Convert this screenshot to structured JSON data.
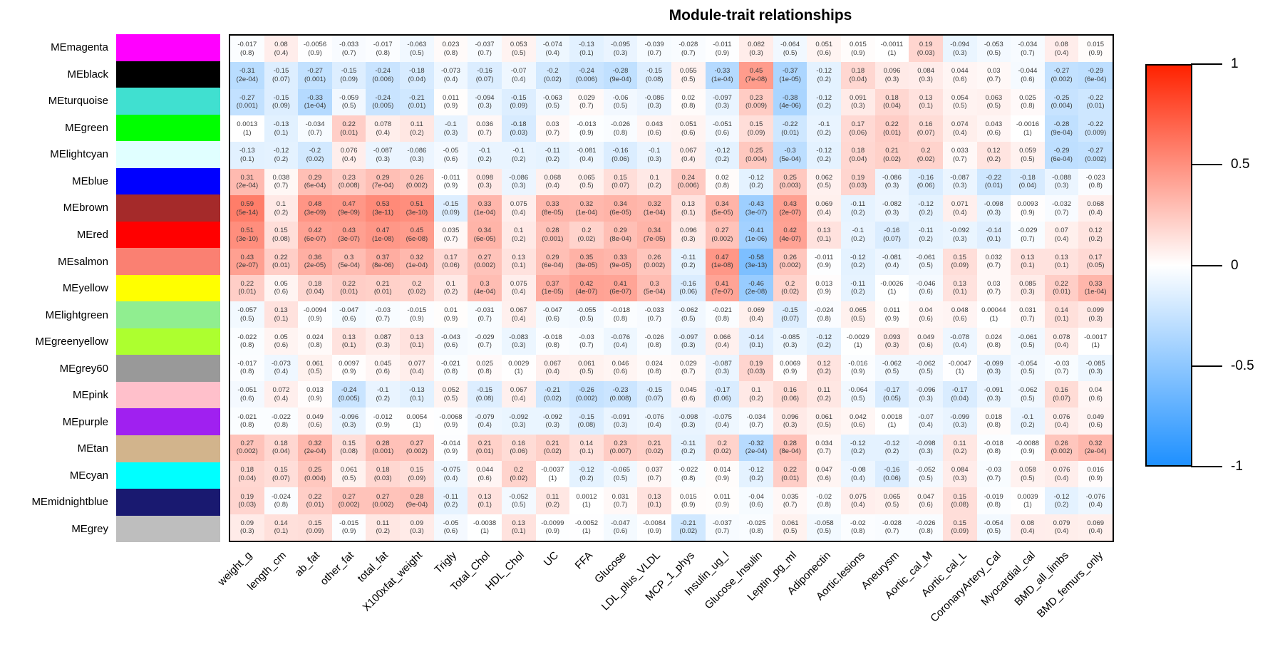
{
  "colors": {
    "heat_positive": "#FF2200",
    "heat_negative": "#1E90FF",
    "heat_zero": "#FFFFFF",
    "frame": "#000000"
  },
  "legend": {
    "ticks": [
      "1",
      "0.5",
      "0",
      "-0.5",
      "-1"
    ]
  },
  "chart_data": {
    "type": "heatmap",
    "title": "Module-trait relationships",
    "value_range": [
      -1,
      1
    ],
    "legend_ticks": [
      1,
      0.5,
      0,
      -0.5,
      -1
    ],
    "cell_text_format": "correlation over (p-value)",
    "rows": [
      "MEmagenta",
      "MEblack",
      "MEturquoise",
      "MEgreen",
      "MElightcyan",
      "MEblue",
      "MEbrown",
      "MEred",
      "MEsalmon",
      "MEyellow",
      "MElightgreen",
      "MEgreenyellow",
      "MEgrey60",
      "MEpink",
      "MEpurple",
      "MEtan",
      "MEcyan",
      "MEmidnightblue",
      "MEgrey"
    ],
    "row_colors": [
      "#FF00FF",
      "#000000",
      "#40E0D0",
      "#00FF00",
      "#E0FFFF",
      "#0000FF",
      "#A52A2A",
      "#FF0000",
      "#FA8072",
      "#FFFF00",
      "#90EE90",
      "#ADFF2F",
      "#999999",
      "#FFC0CB",
      "#A020F0",
      "#D2B48C",
      "#00FFFF",
      "#191970",
      "#BEBEBE"
    ],
    "columns": [
      "weight_g",
      "length_cm",
      "ab_fat",
      "other_fat",
      "total_fat",
      "X100xfat_weight",
      "Trigly",
      "Total_Chol",
      "HDL_Chol",
      "UC",
      "FFA",
      "Glucose",
      "LDL_plus_VLDL",
      "MCP_1_phys",
      "Insulin_ug_l",
      "Glucose_Insulin",
      "Leptin_pg_ml",
      "Adiponectin",
      "Aortic.lesions",
      "Aneurysm",
      "Aortic_cal_M",
      "Aortic_cal_L",
      "CoronaryArtery_Cal",
      "Myocardial_cal",
      "BMD_all_limbs",
      "BMD_femurs_only"
    ],
    "cor": [
      [
        -0.017,
        0.08,
        -0.0056,
        -0.033,
        -0.017,
        -0.063,
        0.023,
        -0.037,
        0.053,
        -0.074,
        -0.13,
        -0.095,
        -0.039,
        -0.028,
        -0.011,
        0.082,
        -0.064,
        0.051,
        0.015,
        -0.0011,
        0.19,
        -0.094,
        -0.053,
        -0.034,
        0.08,
        0.015
      ],
      [
        -0.31,
        -0.15,
        -0.27,
        -0.15,
        -0.24,
        -0.18,
        -0.073,
        -0.16,
        -0.07,
        -0.2,
        -0.24,
        -0.28,
        -0.15,
        0.055,
        -0.33,
        0.45,
        -0.37,
        -0.12,
        0.18,
        0.096,
        0.084,
        0.044,
        0.03,
        -0.044,
        -0.27,
        -0.29
      ],
      [
        -0.27,
        -0.15,
        -0.33,
        -0.059,
        -0.24,
        -0.21,
        0.011,
        -0.094,
        -0.15,
        -0.063,
        0.029,
        -0.06,
        -0.086,
        0.02,
        -0.097,
        0.23,
        -0.38,
        -0.12,
        0.091,
        0.18,
        0.13,
        0.054,
        0.063,
        0.025,
        -0.25,
        -0.22
      ],
      [
        0.0013,
        -0.13,
        -0.034,
        0.22,
        0.078,
        0.11,
        -0.1,
        0.036,
        -0.18,
        0.03,
        -0.013,
        -0.026,
        0.043,
        0.051,
        -0.051,
        0.15,
        -0.22,
        -0.1,
        0.17,
        0.22,
        0.16,
        0.074,
        0.043,
        -0.0016,
        -0.28,
        -0.22
      ],
      [
        -0.13,
        -0.12,
        -0.2,
        0.076,
        -0.087,
        -0.086,
        -0.05,
        -0.1,
        -0.1,
        -0.11,
        -0.081,
        -0.16,
        -0.1,
        0.067,
        -0.12,
        0.25,
        -0.3,
        -0.12,
        0.18,
        0.21,
        0.2,
        0.033,
        0.12,
        0.059,
        -0.29,
        -0.27
      ],
      [
        0.31,
        0.038,
        0.29,
        0.23,
        0.29,
        0.26,
        -0.011,
        0.098,
        -0.086,
        0.068,
        0.065,
        0.15,
        0.1,
        0.24,
        0.02,
        -0.12,
        0.25,
        0.062,
        0.19,
        -0.086,
        -0.16,
        -0.087,
        -0.22,
        -0.18,
        -0.088,
        -0.023
      ],
      [
        0.59,
        0.1,
        0.48,
        0.47,
        0.53,
        0.51,
        -0.15,
        0.33,
        0.075,
        0.33,
        0.32,
        0.34,
        0.32,
        0.13,
        0.34,
        -0.43,
        0.43,
        0.069,
        -0.11,
        -0.082,
        -0.12,
        0.071,
        -0.098,
        0.0093,
        -0.032,
        0.068
      ],
      [
        0.51,
        0.15,
        0.42,
        0.43,
        0.47,
        0.45,
        0.035,
        0.34,
        0.1,
        0.28,
        0.2,
        0.29,
        0.34,
        0.096,
        0.27,
        -0.41,
        0.42,
        0.13,
        -0.1,
        -0.16,
        -0.11,
        -0.092,
        -0.14,
        -0.029,
        0.07,
        0.12
      ],
      [
        0.43,
        0.22,
        0.36,
        0.3,
        0.37,
        0.32,
        0.17,
        0.27,
        0.13,
        0.29,
        0.35,
        0.33,
        0.26,
        -0.11,
        0.47,
        -0.58,
        0.26,
        -0.011,
        -0.12,
        -0.081,
        -0.061,
        0.15,
        0.032,
        0.13,
        0.13,
        0.17
      ],
      [
        0.22,
        0.05,
        0.18,
        0.22,
        0.21,
        0.2,
        0.1,
        0.3,
        0.075,
        0.37,
        0.42,
        0.41,
        0.3,
        -0.16,
        0.41,
        -0.46,
        0.2,
        0.013,
        -0.11,
        -0.0026,
        -0.046,
        0.13,
        0.03,
        0.085,
        0.22,
        0.33
      ],
      [
        -0.057,
        0.13,
        -0.0094,
        -0.047,
        -0.03,
        -0.015,
        0.01,
        -0.031,
        0.067,
        -0.047,
        -0.055,
        -0.018,
        -0.033,
        -0.062,
        -0.021,
        0.069,
        -0.15,
        -0.024,
        0.065,
        0.011,
        0.04,
        0.048,
        0.00044,
        0.031,
        0.14,
        0.099
      ],
      [
        -0.022,
        0.05,
        0.024,
        0.13,
        0.087,
        0.13,
        -0.043,
        -0.029,
        -0.083,
        -0.018,
        -0.03,
        -0.076,
        -0.026,
        -0.097,
        0.066,
        -0.14,
        -0.085,
        -0.12,
        -0.0029,
        0.093,
        0.049,
        -0.078,
        0.024,
        -0.061,
        0.078,
        -0.0017
      ],
      [
        -0.017,
        -0.073,
        0.061,
        0.0097,
        0.045,
        0.077,
        -0.021,
        0.025,
        0.0029,
        0.067,
        0.061,
        0.046,
        0.024,
        0.029,
        -0.087,
        0.19,
        0.0069,
        0.12,
        -0.016,
        -0.062,
        -0.062,
        -0.0047,
        -0.099,
        -0.054,
        -0.03,
        -0.085
      ],
      [
        -0.051,
        0.072,
        0.013,
        -0.24,
        -0.1,
        -0.13,
        0.052,
        -0.15,
        0.067,
        -0.21,
        -0.26,
        -0.23,
        -0.15,
        0.045,
        -0.17,
        0.1,
        0.16,
        0.11,
        -0.064,
        -0.17,
        -0.096,
        -0.17,
        -0.091,
        -0.062,
        0.16,
        0.04
      ],
      [
        -0.021,
        -0.022,
        0.049,
        -0.096,
        -0.012,
        0.0054,
        -0.0068,
        -0.079,
        -0.092,
        -0.092,
        -0.15,
        -0.091,
        -0.076,
        -0.098,
        -0.075,
        -0.034,
        0.096,
        0.061,
        0.042,
        0.0018,
        -0.07,
        -0.099,
        0.018,
        -0.1,
        0.076,
        0.049
      ],
      [
        0.27,
        0.18,
        0.32,
        0.15,
        0.28,
        0.27,
        -0.014,
        0.21,
        0.16,
        0.21,
        0.14,
        0.23,
        0.21,
        -0.11,
        0.2,
        -0.32,
        0.28,
        0.034,
        -0.12,
        -0.12,
        -0.098,
        0.11,
        -0.018,
        -0.0088,
        0.26,
        0.32
      ],
      [
        0.18,
        0.15,
        0.25,
        0.061,
        0.18,
        0.15,
        -0.075,
        0.044,
        0.2,
        -0.0037,
        -0.12,
        -0.065,
        0.037,
        -0.022,
        0.014,
        -0.12,
        0.22,
        0.047,
        -0.08,
        -0.16,
        -0.052,
        0.084,
        -0.03,
        0.058,
        0.076,
        0.016
      ],
      [
        0.19,
        -0.024,
        0.22,
        0.27,
        0.27,
        0.28,
        -0.11,
        0.13,
        -0.052,
        0.11,
        0.0012,
        0.031,
        0.13,
        0.015,
        0.011,
        -0.04,
        0.035,
        -0.02,
        0.075,
        0.065,
        0.047,
        0.15,
        -0.019,
        0.0039,
        -0.12,
        -0.076
      ],
      [
        0.09,
        0.14,
        0.15,
        -0.015,
        0.11,
        0.09,
        -0.05,
        -0.0038,
        0.13,
        -0.0099,
        -0.0052,
        -0.047,
        -0.0084,
        -0.21,
        -0.037,
        -0.025,
        0.061,
        -0.058,
        -0.02,
        -0.028,
        -0.026,
        0.15,
        -0.054,
        0.08,
        0.079,
        0.069
      ]
    ],
    "p": [
      [
        "0.8",
        "0.4",
        "0.9",
        "0.7",
        "0.8",
        "0.5",
        "0.8",
        "0.7",
        "0.5",
        "0.4",
        "0.1",
        "0.3",
        "0.7",
        "0.7",
        "0.9",
        "0.3",
        "0.5",
        "0.6",
        "0.9",
        "1",
        "0.03",
        "0.3",
        "0.5",
        "0.7",
        "0.4",
        "0.9"
      ],
      [
        "2e-04",
        "0.07",
        "0.001",
        "0.09",
        "0.006",
        "0.04",
        "0.4",
        "0.07",
        "0.4",
        "0.02",
        "0.006",
        "9e-04",
        "0.08",
        "0.5",
        "1e-04",
        "7e-08",
        "1e-05",
        "0.2",
        "0.04",
        "0.3",
        "0.3",
        "0.6",
        "0.7",
        "0.6",
        "0.002",
        "6e-04"
      ],
      [
        "0.001",
        "0.09",
        "1e-04",
        "0.5",
        "0.005",
        "0.01",
        "0.9",
        "0.3",
        "0.09",
        "0.5",
        "0.7",
        "0.5",
        "0.3",
        "0.8",
        "0.3",
        "0.009",
        "4e-06",
        "0.2",
        "0.3",
        "0.04",
        "0.1",
        "0.5",
        "0.5",
        "0.8",
        "0.004",
        "0.01"
      ],
      [
        "1",
        "0.1",
        "0.7",
        "0.01",
        "0.4",
        "0.2",
        "0.3",
        "0.7",
        "0.03",
        "0.7",
        "0.9",
        "0.8",
        "0.6",
        "0.6",
        "0.6",
        "0.09",
        "0.01",
        "0.2",
        "0.06",
        "0.01",
        "0.07",
        "0.4",
        "0.6",
        "1",
        "9e-04",
        "0.009"
      ],
      [
        "0.1",
        "0.2",
        "0.02",
        "0.4",
        "0.3",
        "0.3",
        "0.6",
        "0.2",
        "0.2",
        "0.2",
        "0.4",
        "0.06",
        "0.3",
        "0.4",
        "0.2",
        "0.004",
        "5e-04",
        "0.2",
        "0.04",
        "0.02",
        "0.02",
        "0.7",
        "0.2",
        "0.5",
        "6e-04",
        "0.002"
      ],
      [
        "2e-04",
        "0.7",
        "6e-04",
        "0.008",
        "7e-04",
        "0.002",
        "0.9",
        "0.3",
        "0.3",
        "0.4",
        "0.5",
        "0.07",
        "0.2",
        "0.006",
        "0.8",
        "0.2",
        "0.003",
        "0.5",
        "0.03",
        "0.3",
        "0.06",
        "0.3",
        "0.01",
        "0.04",
        "0.3",
        "0.8"
      ],
      [
        "5e-14",
        "0.2",
        "3e-09",
        "9e-09",
        "3e-11",
        "3e-10",
        "0.09",
        "1e-04",
        "0.4",
        "8e-05",
        "1e-04",
        "6e-05",
        "1e-04",
        "0.1",
        "5e-05",
        "3e-07",
        "2e-07",
        "0.4",
        "0.2",
        "0.3",
        "0.2",
        "0.4",
        "0.3",
        "0.9",
        "0.7",
        "0.4"
      ],
      [
        "3e-10",
        "0.08",
        "6e-07",
        "3e-07",
        "1e-08",
        "6e-08",
        "0.7",
        "6e-05",
        "0.2",
        "0.001",
        "0.02",
        "8e-04",
        "7e-05",
        "0.3",
        "0.002",
        "1e-06",
        "4e-07",
        "0.1",
        "0.2",
        "0.07",
        "0.2",
        "0.3",
        "0.1",
        "0.7",
        "0.4",
        "0.2"
      ],
      [
        "2e-07",
        "0.01",
        "2e-05",
        "5e-04",
        "8e-06",
        "1e-04",
        "0.06",
        "0.002",
        "0.1",
        "6e-04",
        "3e-05",
        "9e-05",
        "0.002",
        "0.2",
        "1e-08",
        "3e-13",
        "0.002",
        "0.9",
        "0.2",
        "0.4",
        "0.5",
        "0.09",
        "0.7",
        "0.1",
        "0.1",
        "0.05"
      ],
      [
        "0.01",
        "0.6",
        "0.04",
        "0.01",
        "0.01",
        "0.02",
        "0.2",
        "4e-04",
        "0.4",
        "1e-05",
        "4e-07",
        "6e-07",
        "5e-04",
        "0.06",
        "7e-07",
        "2e-08",
        "0.02",
        "0.9",
        "0.2",
        "1",
        "0.6",
        "0.1",
        "0.7",
        "0.3",
        "0.01",
        "1e-04"
      ],
      [
        "0.5",
        "0.1",
        "0.9",
        "0.6",
        "0.7",
        "0.9",
        "0.9",
        "0.7",
        "0.4",
        "0.6",
        "0.5",
        "0.8",
        "0.7",
        "0.5",
        "0.8",
        "0.4",
        "0.07",
        "0.8",
        "0.5",
        "0.9",
        "0.6",
        "0.6",
        "1",
        "0.7",
        "0.1",
        "0.3"
      ],
      [
        "0.8",
        "0.6",
        "0.8",
        "0.1",
        "0.3",
        "0.1",
        "0.6",
        "0.7",
        "0.3",
        "0.8",
        "0.7",
        "0.4",
        "0.8",
        "0.3",
        "0.4",
        "0.1",
        "0.3",
        "0.2",
        "1",
        "0.3",
        "0.6",
        "0.4",
        "0.8",
        "0.5",
        "0.4",
        "1"
      ],
      [
        "0.8",
        "0.4",
        "0.5",
        "0.9",
        "0.6",
        "0.4",
        "0.8",
        "0.8",
        "1",
        "0.4",
        "0.5",
        "0.6",
        "0.8",
        "0.7",
        "0.3",
        "0.03",
        "0.9",
        "0.2",
        "0.9",
        "0.5",
        "0.5",
        "1",
        "0.3",
        "0.5",
        "0.7",
        "0.3"
      ],
      [
        "0.6",
        "0.4",
        "0.9",
        "0.005",
        "0.2",
        "0.1",
        "0.5",
        "0.08",
        "0.4",
        "0.02",
        "0.002",
        "0.008",
        "0.07",
        "0.6",
        "0.06",
        "0.2",
        "0.06",
        "0.2",
        "0.5",
        "0.05",
        "0.3",
        "0.04",
        "0.3",
        "0.5",
        "0.07",
        "0.6"
      ],
      [
        "0.8",
        "0.8",
        "0.6",
        "0.3",
        "0.9",
        "1",
        "0.9",
        "0.4",
        "0.3",
        "0.3",
        "0.08",
        "0.3",
        "0.4",
        "0.3",
        "0.4",
        "0.7",
        "0.3",
        "0.5",
        "0.6",
        "1",
        "0.4",
        "0.3",
        "0.8",
        "0.2",
        "0.4",
        "0.6"
      ],
      [
        "0.002",
        "0.04",
        "2e-04",
        "0.08",
        "0.001",
        "0.002",
        "0.9",
        "0.01",
        "0.06",
        "0.02",
        "0.1",
        "0.007",
        "0.02",
        "0.2",
        "0.02",
        "2e-04",
        "8e-04",
        "0.7",
        "0.2",
        "0.2",
        "0.3",
        "0.2",
        "0.8",
        "0.9",
        "0.002",
        "2e-04"
      ],
      [
        "0.04",
        "0.07",
        "0.004",
        "0.5",
        "0.03",
        "0.09",
        "0.4",
        "0.6",
        "0.02",
        "1",
        "0.2",
        "0.5",
        "0.7",
        "0.8",
        "0.9",
        "0.2",
        "0.01",
        "0.6",
        "0.4",
        "0.06",
        "0.5",
        "0.3",
        "0.7",
        "0.5",
        "0.4",
        "0.9"
      ],
      [
        "0.03",
        "0.8",
        "0.01",
        "0.002",
        "0.002",
        "9e-04",
        "0.2",
        "0.1",
        "0.5",
        "0.2",
        "1",
        "0.7",
        "0.1",
        "0.9",
        "0.9",
        "0.6",
        "0.7",
        "0.8",
        "0.4",
        "0.5",
        "0.6",
        "0.08",
        "0.8",
        "1",
        "0.2",
        "0.4"
      ],
      [
        "0.3",
        "0.1",
        "0.09",
        "0.9",
        "0.2",
        "0.3",
        "0.6",
        "1",
        "0.1",
        "0.9",
        "1",
        "0.6",
        "0.9",
        "0.02",
        "0.7",
        "0.8",
        "0.5",
        "0.5",
        "0.8",
        "0.7",
        "0.8",
        "0.09",
        "0.5",
        "0.4",
        "0.4",
        "0.4"
      ]
    ]
  }
}
